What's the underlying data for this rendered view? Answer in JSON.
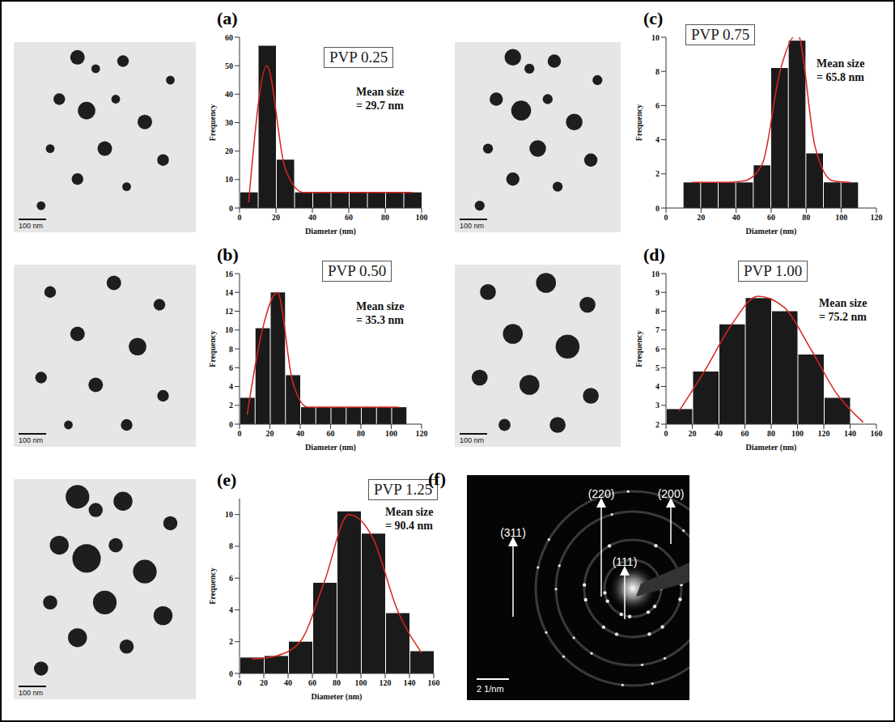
{
  "chart_data": [
    {
      "type": "histogram",
      "panel": "(a)",
      "title": "PVP 0.25",
      "annotation": [
        "Mean size",
        "= 29.7 nm"
      ],
      "xlabel": "Diameter (nm)",
      "ylabel": "Frequency",
      "bins": [
        0,
        10,
        20,
        30,
        40,
        50,
        60,
        70,
        80,
        90,
        100
      ],
      "counts": [
        5.5,
        57,
        17,
        5.5,
        5.5,
        5.5,
        5.5,
        5.5,
        5.5,
        5.5
      ],
      "color": "#1a1a1a",
      "fit": {
        "type": "line",
        "color": "#d7261e",
        "x": [
          5,
          15,
          25,
          35,
          45,
          55,
          65,
          75,
          85,
          95
        ],
        "values": [
          2,
          50,
          14,
          5.5,
          5.5,
          5.5,
          5.5,
          5.5,
          5.5,
          5.5
        ]
      },
      "xlim": [
        0,
        100
      ],
      "xticks": [
        0,
        20,
        40,
        60,
        80,
        100
      ],
      "ylim": [
        0,
        60
      ],
      "yticks": [
        0,
        10,
        20,
        30,
        40,
        50,
        60
      ],
      "grid": false
    },
    {
      "type": "histogram",
      "panel": "(b)",
      "title": "PVP 0.50",
      "annotation": [
        "Mean size",
        "= 35.3 nm"
      ],
      "xlabel": "Diameter (nm)",
      "ylabel": "Frequency",
      "bins": [
        0,
        10,
        20,
        30,
        40,
        50,
        60,
        70,
        80,
        90,
        100,
        110
      ],
      "counts": [
        2.8,
        10.2,
        14,
        5.2,
        1.8,
        1.8,
        1.8,
        1.8,
        1.8,
        1.8,
        1.8
      ],
      "color": "#1a1a1a",
      "fit": {
        "type": "line",
        "color": "#d7261e",
        "x": [
          5,
          15,
          25,
          35,
          45,
          55,
          65,
          75,
          85,
          95,
          105
        ],
        "values": [
          1,
          10,
          14,
          4.5,
          1.8,
          1.8,
          1.8,
          1.8,
          1.8,
          1.8,
          1.8
        ]
      },
      "xlim": [
        0,
        120
      ],
      "xticks": [
        0,
        20,
        40,
        60,
        80,
        100,
        120
      ],
      "ylim": [
        0,
        16
      ],
      "yticks": [
        0,
        2,
        4,
        6,
        8,
        10,
        12,
        14,
        16
      ],
      "grid": false
    },
    {
      "type": "histogram",
      "panel": "(c)",
      "title": "PVP 0.75",
      "annotation": [
        "Mean size",
        "= 65.8 nm"
      ],
      "xlabel": "Diameter (nm)",
      "ylabel": "Frequency",
      "bins": [
        10,
        20,
        30,
        40,
        50,
        60,
        70,
        80,
        90,
        100,
        110
      ],
      "counts": [
        1.5,
        1.5,
        1.5,
        1.5,
        2.5,
        8.2,
        9.8,
        3.2,
        1.5,
        1.5
      ],
      "color": "#1a1a1a",
      "fit": {
        "type": "line",
        "color": "#d7261e",
        "x": [
          15,
          25,
          35,
          45,
          55,
          65,
          75,
          85,
          95,
          105
        ],
        "values": [
          1.5,
          1.5,
          1.5,
          1.6,
          2.6,
          8,
          10.2,
          3.6,
          1.6,
          1.5
        ]
      },
      "xlim": [
        0,
        120
      ],
      "xticks": [
        0,
        20,
        40,
        60,
        80,
        100,
        120
      ],
      "ylim": [
        0,
        10
      ],
      "yticks": [
        0,
        2,
        4,
        6,
        8,
        10
      ],
      "grid": false
    },
    {
      "type": "histogram",
      "panel": "(d)",
      "title": "PVP 1.00",
      "annotation": [
        "Mean size",
        "= 75.2 nm"
      ],
      "xlabel": "Diameter (nm)",
      "ylabel": "Frequency",
      "bins": [
        0,
        20,
        40,
        60,
        80,
        100,
        120,
        140,
        160
      ],
      "counts": [
        2.8,
        4.8,
        7.3,
        8.7,
        8.0,
        5.7,
        3.4,
        2.0
      ],
      "color": "#1a1a1a",
      "fit": {
        "type": "line",
        "color": "#d7261e",
        "x": [
          10,
          30,
          50,
          70,
          90,
          110,
          130,
          150
        ],
        "values": [
          2.7,
          4.9,
          7.3,
          8.8,
          8.2,
          6,
          3.6,
          2.1
        ]
      },
      "xlim": [
        0,
        160
      ],
      "xticks": [
        0,
        20,
        40,
        60,
        80,
        100,
        120,
        140,
        160
      ],
      "ylim": [
        2,
        10
      ],
      "yticks": [
        2,
        3,
        4,
        5,
        6,
        7,
        8,
        9,
        10
      ],
      "grid": false
    },
    {
      "type": "histogram",
      "panel": "(e)",
      "title": "PVP 1.25",
      "annotation": [
        "Mean size",
        "= 90.4 nm"
      ],
      "xlabel": "Diameter (nm)",
      "ylabel": "Frequency",
      "bins": [
        0,
        20,
        40,
        60,
        80,
        100,
        120,
        140,
        160
      ],
      "counts": [
        1,
        1.1,
        2,
        5.7,
        10.2,
        8.8,
        3.8,
        1.4
      ],
      "color": "#1a1a1a",
      "fit": {
        "type": "line",
        "color": "#d7261e",
        "x": [
          10,
          30,
          50,
          70,
          90,
          110,
          130,
          150
        ],
        "values": [
          0.9,
          1.1,
          2,
          5.8,
          10,
          8.5,
          4,
          1.3
        ]
      },
      "xlim": [
        0,
        160
      ],
      "xticks": [
        0,
        20,
        40,
        60,
        80,
        100,
        120,
        140,
        160
      ],
      "ylim": [
        0,
        11
      ],
      "yticks": [
        0,
        2,
        4,
        6,
        8,
        10
      ],
      "grid": false
    }
  ],
  "tem_scale_bar": "100 nm",
  "diffraction_pattern": {
    "panel": "(f)",
    "labels": [
      "(311)",
      "(220)",
      "(200)",
      "(111)"
    ],
    "scale_bar": "2 1/nm"
  }
}
